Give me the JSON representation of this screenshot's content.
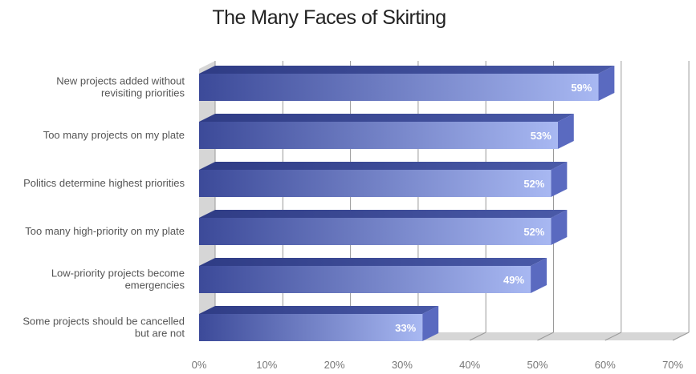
{
  "chart_data": {
    "type": "bar",
    "orientation": "horizontal",
    "title": "The Many Faces of Skirting",
    "categories": [
      [
        "New projects added without",
        "revisiting priorities"
      ],
      [
        "Too many projects on my plate"
      ],
      [
        "Politics determine highest priorities"
      ],
      [
        "Too many high-priority on my plate"
      ],
      [
        "Low-priority projects become",
        "emergencies"
      ],
      [
        "Some projects should be cancelled",
        "but are not"
      ]
    ],
    "values": [
      59,
      53,
      52,
      52,
      49,
      33
    ],
    "value_labels": [
      "59%",
      "53%",
      "52%",
      "52%",
      "49%",
      "33%"
    ],
    "xlim": [
      0,
      70
    ],
    "ticks": [
      0,
      10,
      20,
      30,
      40,
      50,
      60,
      70
    ],
    "tick_labels": [
      "0%",
      "10%",
      "20%",
      "30%",
      "40%",
      "50%",
      "60%",
      "70%"
    ],
    "grid": true,
    "style": "3d",
    "colors": {
      "bar_dark": "#3c4a99",
      "bar_light": "#a8b8f2",
      "bar_top": "#4a5aa8",
      "bar_side": "#5a6ac0",
      "grid": "#9a9a9a",
      "wall": "#d6d6d6"
    }
  }
}
